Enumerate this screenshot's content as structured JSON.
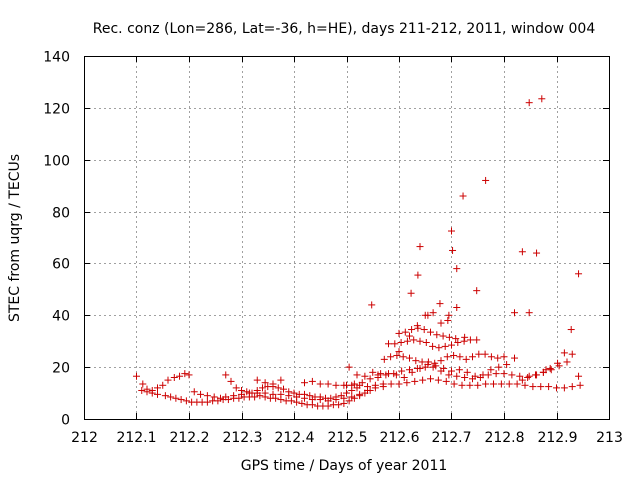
{
  "chart_data": {
    "type": "scatter",
    "title": "Rec. conz (Lon=286, Lat=-36, h=HE), days 211-212, 2011, window 004",
    "xlabel": "GPS time / Days of year 2011",
    "ylabel": "STEC from uqrg / TECUs",
    "xlim": [
      212,
      213
    ],
    "ylim": [
      0,
      140
    ],
    "xticks": [
      "212",
      "212.1",
      "212.2",
      "212.3",
      "212.4",
      "212.5",
      "212.6",
      "212.7",
      "212.8",
      "212.9",
      "213"
    ],
    "yticks": [
      "0",
      "20",
      "40",
      "60",
      "80",
      "100",
      "120",
      "140"
    ],
    "grid": true,
    "marker": "+",
    "color": "#cc0000",
    "series": [
      {
        "x": [
          212.1,
          212.112,
          212.12,
          212.13,
          212.14,
          212.15,
          212.16,
          212.172,
          212.182,
          212.192,
          212.2,
          212.11,
          212.12,
          212.13,
          212.14,
          212.155,
          212.165,
          212.175,
          212.185,
          212.195,
          212.205,
          212.215,
          212.225,
          212.235,
          212.245,
          212.255,
          212.265,
          212.275,
          212.285,
          212.295,
          212.305,
          212.315,
          212.325,
          212.335,
          212.345,
          212.355,
          212.365,
          212.375,
          212.385,
          212.395,
          212.405,
          212.415,
          212.425,
          212.435,
          212.445,
          212.455,
          212.465,
          212.475,
          212.485,
          212.495,
          212.505,
          212.515,
          212.525,
          212.535,
          212.545,
          212.21,
          212.222,
          212.235,
          212.248,
          212.26,
          212.27,
          212.285,
          212.3,
          212.315,
          212.33,
          212.345,
          212.36,
          212.375,
          212.39,
          212.405,
          212.42,
          212.435,
          212.45,
          212.465,
          212.48,
          212.495,
          212.51,
          212.525,
          212.54,
          212.555,
          212.57,
          212.27,
          212.28,
          212.29,
          212.3,
          212.31,
          212.32,
          212.33,
          212.34,
          212.35,
          212.36,
          212.37,
          212.38,
          212.39,
          212.4,
          212.41,
          212.42,
          212.43,
          212.44,
          212.45,
          212.46,
          212.47,
          212.48,
          212.49,
          212.5,
          212.51,
          212.52,
          212.33,
          212.345,
          212.36,
          212.375,
          212.42,
          212.435,
          212.45,
          212.465,
          212.48,
          212.495,
          212.51,
          212.525,
          212.54,
          212.555,
          212.57,
          212.585,
          212.6,
          212.615,
          212.63,
          212.645,
          212.66,
          212.675,
          212.69,
          212.705,
          212.72,
          212.735,
          212.75,
          212.765,
          212.78,
          212.795,
          212.81,
          212.825,
          212.84,
          212.855,
          212.87,
          212.885,
          212.9,
          212.915,
          212.93,
          212.945,
          212.5,
          212.515,
          212.53,
          212.545,
          212.56,
          212.575,
          212.59,
          212.605,
          212.62,
          212.635,
          212.65,
          212.665,
          212.68,
          212.695,
          212.71,
          212.725,
          212.74,
          212.755,
          212.77,
          212.785,
          212.8,
          212.815,
          212.83,
          212.845,
          212.86,
          212.875,
          212.89,
          212.905,
          212.92,
          212.505,
          212.52,
          212.535,
          212.55,
          212.565,
          212.58,
          212.595,
          212.61,
          212.625,
          212.64,
          212.655,
          212.67,
          212.685,
          212.7,
          212.715,
          212.73,
          212.745,
          212.76,
          212.775,
          212.79,
          212.805,
          212.82,
          212.56,
          212.572,
          212.584,
          212.596,
          212.608,
          212.62,
          212.632,
          212.644,
          212.656,
          212.668,
          212.68,
          212.692,
          212.704,
          212.716,
          212.728,
          212.74,
          212.752,
          212.764,
          212.776,
          212.788,
          212.8,
          212.58,
          212.592,
          212.604,
          212.616,
          212.628,
          212.64,
          212.652,
          212.664,
          212.676,
          212.688,
          212.7,
          212.712,
          212.724,
          212.736,
          212.748,
          212.6,
          212.612,
          212.624,
          212.636,
          212.648,
          212.66,
          212.672,
          212.684,
          212.696,
          212.708,
          212.62,
          212.635,
          212.65,
          212.665,
          212.68,
          212.695,
          212.71,
          212.725,
          212.835,
          212.848,
          212.862,
          212.875,
          212.888,
          212.902,
          212.915,
          212.928,
          212.942,
          212.548,
          212.6,
          212.623,
          212.636,
          212.64,
          212.655,
          212.678,
          212.693,
          212.7,
          212.702,
          212.71,
          212.722,
          212.748,
          212.765,
          212.82,
          212.835,
          212.848,
          212.862,
          212.848,
          212.872,
          212.942,
          212.93,
          212.88
        ],
        "y": [
          16.5,
          13.5,
          11.5,
          11.0,
          12.0,
          13.0,
          15.0,
          16.0,
          16.5,
          17.5,
          17.0,
          11.0,
          10.5,
          10.0,
          9.5,
          9.0,
          8.5,
          8.0,
          7.5,
          7.0,
          6.5,
          6.5,
          6.5,
          6.5,
          7.0,
          7.0,
          7.5,
          7.5,
          8.0,
          8.0,
          8.5,
          8.5,
          8.5,
          9.0,
          8.5,
          8.0,
          8.0,
          7.5,
          7.0,
          7.0,
          6.5,
          6.0,
          5.5,
          5.5,
          5.0,
          5.0,
          5.0,
          5.5,
          5.5,
          6.0,
          7.0,
          8.0,
          9.0,
          10.0,
          11.0,
          10.5,
          9.5,
          9.0,
          8.5,
          8.0,
          8.5,
          9.0,
          9.5,
          10.0,
          10.0,
          10.0,
          9.5,
          9.5,
          9.0,
          8.5,
          8.0,
          7.5,
          7.5,
          7.0,
          7.5,
          8.0,
          8.5,
          9.5,
          11.0,
          12.0,
          12.5,
          17.0,
          14.5,
          12.0,
          11.0,
          10.5,
          10.0,
          11.0,
          12.0,
          12.5,
          12.5,
          12.0,
          11.5,
          10.5,
          10.0,
          9.5,
          9.5,
          9.0,
          8.5,
          8.5,
          8.0,
          8.0,
          8.5,
          9.0,
          10.0,
          11.0,
          12.0,
          15.0,
          14.0,
          13.5,
          15.0,
          14.0,
          14.5,
          13.5,
          13.5,
          13.0,
          13.0,
          13.0,
          13.0,
          12.5,
          13.0,
          13.5,
          13.5,
          13.5,
          14.0,
          14.5,
          15.0,
          15.5,
          15.0,
          14.5,
          13.5,
          13.0,
          13.0,
          13.0,
          13.5,
          13.5,
          13.5,
          13.5,
          13.5,
          13.0,
          12.5,
          12.5,
          12.5,
          12.0,
          12.0,
          12.5,
          13.0,
          13.0,
          13.5,
          14.0,
          15.5,
          16.0,
          17.0,
          17.5,
          18.5,
          19.0,
          19.5,
          20.0,
          20.0,
          18.5,
          17.0,
          16.5,
          16.0,
          15.5,
          16.0,
          17.0,
          17.5,
          17.5,
          17.0,
          16.5,
          16.0,
          17.0,
          18.0,
          19.0,
          20.5,
          22.0,
          20.0,
          17.0,
          16.5,
          18.0,
          17.5,
          17.5,
          17.0,
          16.0,
          18.0,
          19.5,
          21.0,
          20.5,
          19.5,
          18.5,
          19.0,
          18.0,
          16.5,
          17.0,
          19.0,
          20.0,
          21.0,
          23.5,
          17.0,
          23.0,
          24.0,
          24.5,
          24.0,
          23.5,
          22.5,
          22.0,
          22.0,
          21.5,
          22.5,
          24.0,
          24.5,
          24.0,
          23.0,
          24.0,
          25.0,
          25.0,
          24.0,
          23.5,
          24.0,
          29.0,
          29.0,
          29.5,
          30.0,
          30.5,
          30.0,
          29.5,
          28.0,
          27.5,
          28.0,
          28.5,
          29.5,
          30.0,
          30.5,
          30.5,
          33.0,
          33.5,
          34.5,
          35.0,
          34.5,
          33.5,
          32.5,
          32.0,
          31.5,
          31.0,
          32.0,
          36.0,
          40.0,
          41.0,
          37.0,
          40.0,
          43.0,
          31.5,
          15.0,
          16.5,
          17.0,
          18.0,
          19.5,
          21.5,
          25.5,
          34.5,
          56.0,
          44.0,
          26.0,
          48.5,
          55.5,
          66.5,
          40.0,
          44.5,
          38.0,
          72.5,
          65.0,
          58.0,
          86.0,
          49.5,
          92.0,
          41.0,
          64.5,
          41.0,
          64.0,
          122.0,
          123.5,
          16.5,
          25.0,
          19.0
        ]
      }
    ]
  }
}
